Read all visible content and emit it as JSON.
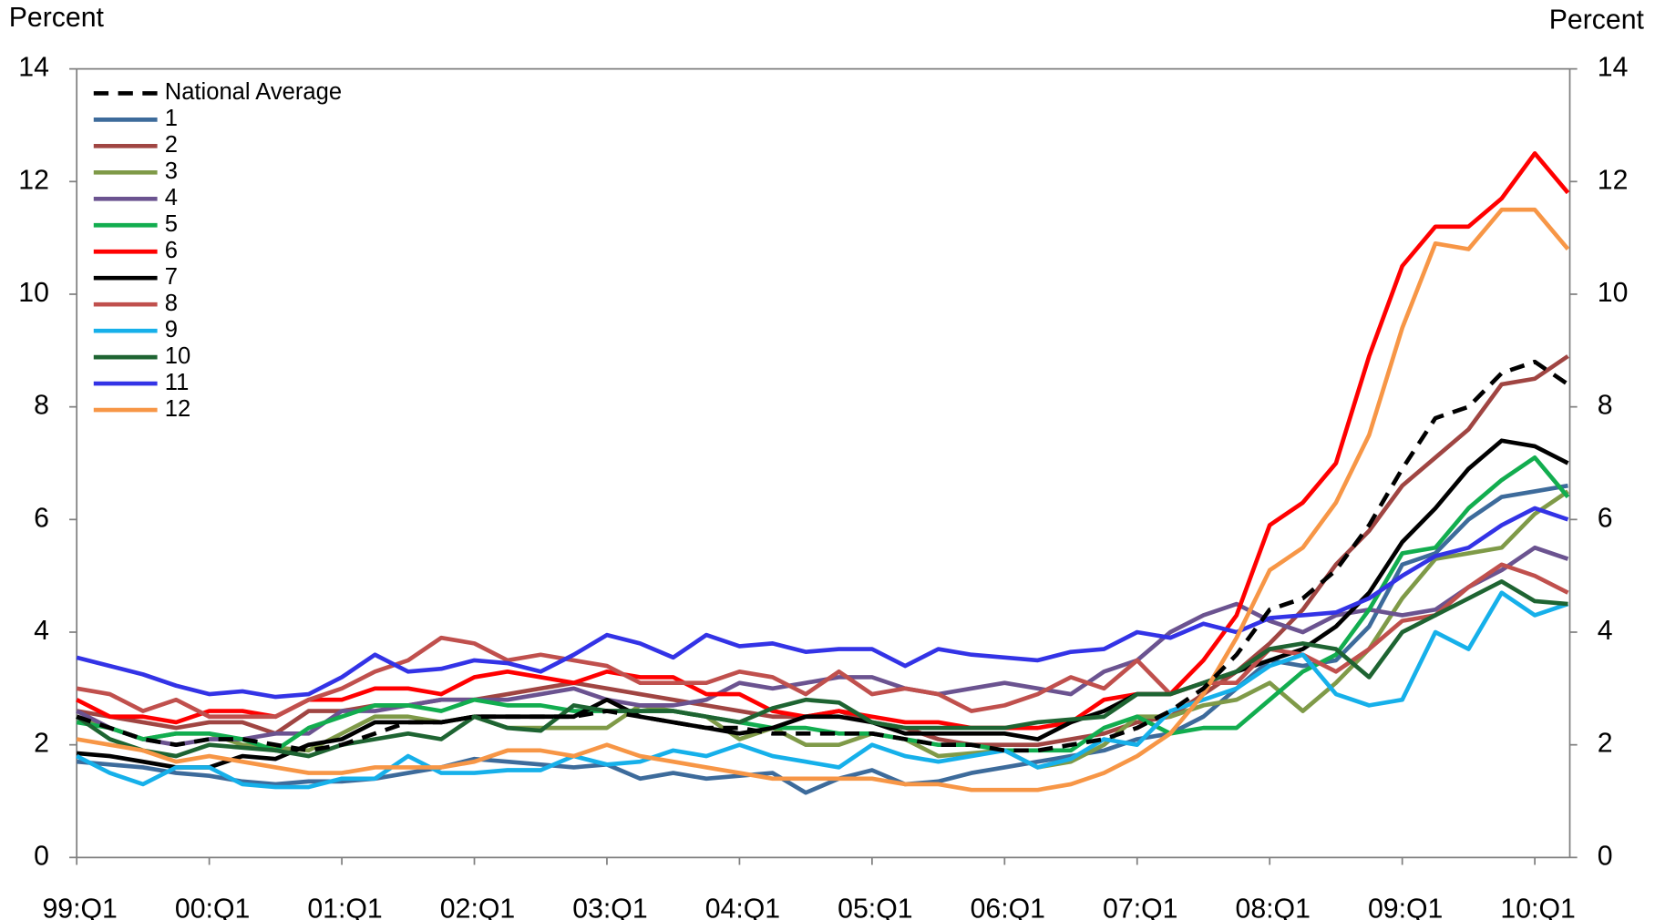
{
  "chart_data": {
    "type": "line",
    "y_label": "Percent",
    "y2_label": "Percent",
    "categories": [
      "99:Q1",
      null,
      null,
      null,
      "00:Q1",
      null,
      null,
      null,
      "01:Q1",
      null,
      null,
      null,
      "02:Q1",
      null,
      null,
      null,
      "03:Q1",
      null,
      null,
      null,
      "04:Q1",
      null,
      null,
      null,
      "05:Q1",
      null,
      null,
      null,
      "06:Q1",
      null,
      null,
      null,
      "07:Q1",
      null,
      null,
      null,
      "08:Q1",
      null,
      null,
      null,
      "09:Q1",
      null,
      null,
      null,
      "10:Q1",
      null
    ],
    "ylim": [
      0,
      14
    ],
    "yticks": [
      0,
      2,
      4,
      6,
      8,
      10,
      12,
      14
    ],
    "y2lim": [
      0,
      14
    ],
    "y2ticks": [
      0,
      2,
      4,
      6,
      8,
      10,
      12,
      14
    ],
    "legend_position": "upper left",
    "series": [
      {
        "name": "National Average",
        "color": "#000000",
        "line_style": "dashed",
        "values": [
          2.5,
          2.3,
          2.1,
          2.0,
          2.1,
          2.1,
          2.0,
          1.9,
          2.0,
          2.2,
          2.4,
          2.4,
          2.5,
          2.5,
          2.5,
          2.5,
          2.6,
          2.5,
          2.4,
          2.3,
          2.3,
          2.2,
          2.2,
          2.2,
          2.2,
          2.1,
          2.0,
          2.0,
          1.9,
          1.9,
          2.0,
          2.1,
          2.3,
          2.6,
          3.0,
          3.6,
          4.4,
          4.6,
          5.1,
          5.9,
          6.9,
          7.8,
          8.0,
          8.6,
          8.8,
          8.4
        ]
      },
      {
        "name": "1",
        "color": "#3d6b9b",
        "line_style": "solid",
        "values": [
          1.7,
          1.65,
          1.6,
          1.5,
          1.45,
          1.35,
          1.3,
          1.35,
          1.35,
          1.4,
          1.5,
          1.6,
          1.75,
          1.7,
          1.65,
          1.6,
          1.65,
          1.4,
          1.5,
          1.4,
          1.45,
          1.5,
          1.15,
          1.4,
          1.55,
          1.3,
          1.35,
          1.5,
          1.6,
          1.7,
          1.8,
          1.9,
          2.1,
          2.2,
          2.5,
          3.0,
          3.5,
          3.4,
          3.5,
          4.1,
          5.2,
          5.4,
          6.0,
          6.4,
          6.5,
          6.6
        ]
      },
      {
        "name": "2",
        "color": "#a04542",
        "line_style": "solid",
        "values": [
          2.6,
          2.5,
          2.4,
          2.3,
          2.4,
          2.4,
          2.2,
          2.6,
          2.6,
          2.7,
          2.7,
          2.8,
          2.8,
          2.9,
          3.0,
          3.1,
          3.0,
          2.9,
          2.8,
          2.7,
          2.6,
          2.5,
          2.5,
          2.6,
          2.4,
          2.3,
          2.1,
          2.0,
          2.0,
          2.0,
          2.1,
          2.2,
          2.4,
          2.5,
          2.9,
          3.3,
          3.8,
          4.4,
          5.2,
          5.8,
          6.6,
          7.1,
          7.6,
          8.4,
          8.5,
          8.9
        ]
      },
      {
        "name": "3",
        "color": "#7f9a48",
        "line_style": "solid",
        "values": [
          2.5,
          2.3,
          2.1,
          2.2,
          2.2,
          2.0,
          1.95,
          1.9,
          2.2,
          2.5,
          2.5,
          2.4,
          2.5,
          2.3,
          2.3,
          2.3,
          2.3,
          2.7,
          2.6,
          2.5,
          2.1,
          2.3,
          2.0,
          2.0,
          2.2,
          2.1,
          1.8,
          1.85,
          1.9,
          1.6,
          1.7,
          2.0,
          2.5,
          2.5,
          2.7,
          2.8,
          3.1,
          2.6,
          3.1,
          3.7,
          4.6,
          5.3,
          5.4,
          5.5,
          6.1,
          6.5
        ]
      },
      {
        "name": "4",
        "color": "#6b5390",
        "line_style": "solid",
        "values": [
          2.6,
          2.3,
          2.1,
          2.0,
          2.1,
          2.1,
          2.2,
          2.2,
          2.6,
          2.6,
          2.7,
          2.8,
          2.8,
          2.8,
          2.9,
          3.0,
          2.8,
          2.7,
          2.7,
          2.8,
          3.1,
          3.0,
          3.1,
          3.2,
          3.2,
          3.0,
          2.9,
          3.0,
          3.1,
          3.0,
          2.9,
          3.3,
          3.5,
          4.0,
          4.3,
          4.5,
          4.2,
          4.0,
          4.3,
          4.4,
          4.3,
          4.4,
          4.8,
          5.1,
          5.5,
          5.3
        ]
      },
      {
        "name": "5",
        "color": "#12ad4f",
        "line_style": "solid",
        "values": [
          2.4,
          2.3,
          2.1,
          2.2,
          2.2,
          2.1,
          1.9,
          2.3,
          2.5,
          2.7,
          2.7,
          2.6,
          2.8,
          2.7,
          2.7,
          2.6,
          2.6,
          2.6,
          2.6,
          2.5,
          2.4,
          2.3,
          2.3,
          2.2,
          2.2,
          2.1,
          2.0,
          2.0,
          1.9,
          1.9,
          1.9,
          2.3,
          2.5,
          2.2,
          2.3,
          2.3,
          2.8,
          3.3,
          3.6,
          4.4,
          5.4,
          5.5,
          6.2,
          6.7,
          7.1,
          6.4
        ]
      },
      {
        "name": "6",
        "color": "#ff0000",
        "line_style": "solid",
        "values": [
          2.8,
          2.5,
          2.5,
          2.4,
          2.6,
          2.6,
          2.5,
          2.8,
          2.8,
          3.0,
          3.0,
          2.9,
          3.2,
          3.3,
          3.2,
          3.1,
          3.3,
          3.2,
          3.2,
          2.9,
          2.9,
          2.6,
          2.5,
          2.6,
          2.5,
          2.4,
          2.4,
          2.3,
          2.3,
          2.3,
          2.4,
          2.8,
          2.9,
          2.9,
          3.5,
          4.3,
          5.9,
          6.3,
          7.0,
          8.9,
          10.5,
          11.2,
          11.2,
          11.7,
          12.5,
          11.8
        ]
      },
      {
        "name": "7",
        "color": "#000000",
        "line_style": "solid",
        "values": [
          1.85,
          1.8,
          1.7,
          1.6,
          1.6,
          1.8,
          1.75,
          2.0,
          2.1,
          2.4,
          2.4,
          2.4,
          2.5,
          2.5,
          2.5,
          2.5,
          2.8,
          2.5,
          2.4,
          2.3,
          2.2,
          2.3,
          2.5,
          2.5,
          2.4,
          2.2,
          2.2,
          2.2,
          2.2,
          2.1,
          2.4,
          2.6,
          2.9,
          2.9,
          3.1,
          3.3,
          3.5,
          3.7,
          4.1,
          4.7,
          5.6,
          6.2,
          6.9,
          7.4,
          7.3,
          7.0
        ]
      },
      {
        "name": "8",
        "color": "#c0504d",
        "line_style": "solid",
        "values": [
          3.0,
          2.9,
          2.6,
          2.8,
          2.5,
          2.5,
          2.5,
          2.8,
          3.0,
          3.3,
          3.5,
          3.9,
          3.8,
          3.5,
          3.6,
          3.5,
          3.4,
          3.1,
          3.1,
          3.1,
          3.3,
          3.2,
          2.9,
          3.3,
          2.9,
          3.0,
          2.9,
          2.6,
          2.7,
          2.9,
          3.2,
          3.0,
          3.5,
          2.9,
          3.1,
          3.1,
          3.7,
          3.6,
          3.3,
          3.7,
          4.2,
          4.3,
          4.8,
          5.2,
          5.0,
          4.7
        ]
      },
      {
        "name": "9",
        "color": "#16b0ea",
        "line_style": "solid",
        "values": [
          1.8,
          1.5,
          1.3,
          1.6,
          1.6,
          1.3,
          1.25,
          1.25,
          1.4,
          1.4,
          1.8,
          1.5,
          1.5,
          1.55,
          1.55,
          1.8,
          1.65,
          1.7,
          1.9,
          1.8,
          2.0,
          1.8,
          1.7,
          1.6,
          2.0,
          1.8,
          1.7,
          1.8,
          1.9,
          1.6,
          1.75,
          2.1,
          2.0,
          2.6,
          2.8,
          3.0,
          3.4,
          3.6,
          2.9,
          2.7,
          2.8,
          4.0,
          3.7,
          4.7,
          4.3,
          4.5
        ]
      },
      {
        "name": "10",
        "color": "#1e6432",
        "line_style": "solid",
        "values": [
          2.5,
          2.1,
          1.9,
          1.8,
          2.0,
          1.95,
          1.9,
          1.8,
          2.0,
          2.1,
          2.2,
          2.1,
          2.5,
          2.3,
          2.25,
          2.7,
          2.6,
          2.6,
          2.6,
          2.5,
          2.4,
          2.65,
          2.8,
          2.75,
          2.4,
          2.3,
          2.3,
          2.3,
          2.3,
          2.4,
          2.45,
          2.5,
          2.9,
          2.9,
          3.1,
          3.3,
          3.7,
          3.8,
          3.7,
          3.2,
          4.0,
          4.3,
          4.6,
          4.9,
          4.55,
          4.5
        ]
      },
      {
        "name": "11",
        "color": "#3333e6",
        "line_style": "solid",
        "values": [
          3.55,
          3.4,
          3.25,
          3.05,
          2.9,
          2.95,
          2.85,
          2.9,
          3.2,
          3.6,
          3.3,
          3.35,
          3.5,
          3.45,
          3.3,
          3.6,
          3.95,
          3.8,
          3.55,
          3.95,
          3.75,
          3.8,
          3.65,
          3.7,
          3.7,
          3.4,
          3.7,
          3.6,
          3.55,
          3.5,
          3.65,
          3.7,
          4.0,
          3.9,
          4.15,
          4.0,
          4.25,
          4.3,
          4.35,
          4.6,
          5.0,
          5.35,
          5.5,
          5.9,
          6.2,
          6.0
        ]
      },
      {
        "name": "12",
        "color": "#f79646",
        "line_style": "solid",
        "values": [
          2.1,
          2.0,
          1.9,
          1.7,
          1.8,
          1.7,
          1.6,
          1.5,
          1.5,
          1.6,
          1.6,
          1.6,
          1.7,
          1.9,
          1.9,
          1.8,
          2.0,
          1.8,
          1.7,
          1.6,
          1.5,
          1.4,
          1.4,
          1.4,
          1.4,
          1.3,
          1.3,
          1.2,
          1.2,
          1.2,
          1.3,
          1.5,
          1.8,
          2.2,
          2.9,
          3.9,
          5.1,
          5.5,
          6.3,
          7.5,
          9.4,
          10.9,
          10.8,
          11.5,
          11.5,
          10.8
        ]
      }
    ]
  }
}
